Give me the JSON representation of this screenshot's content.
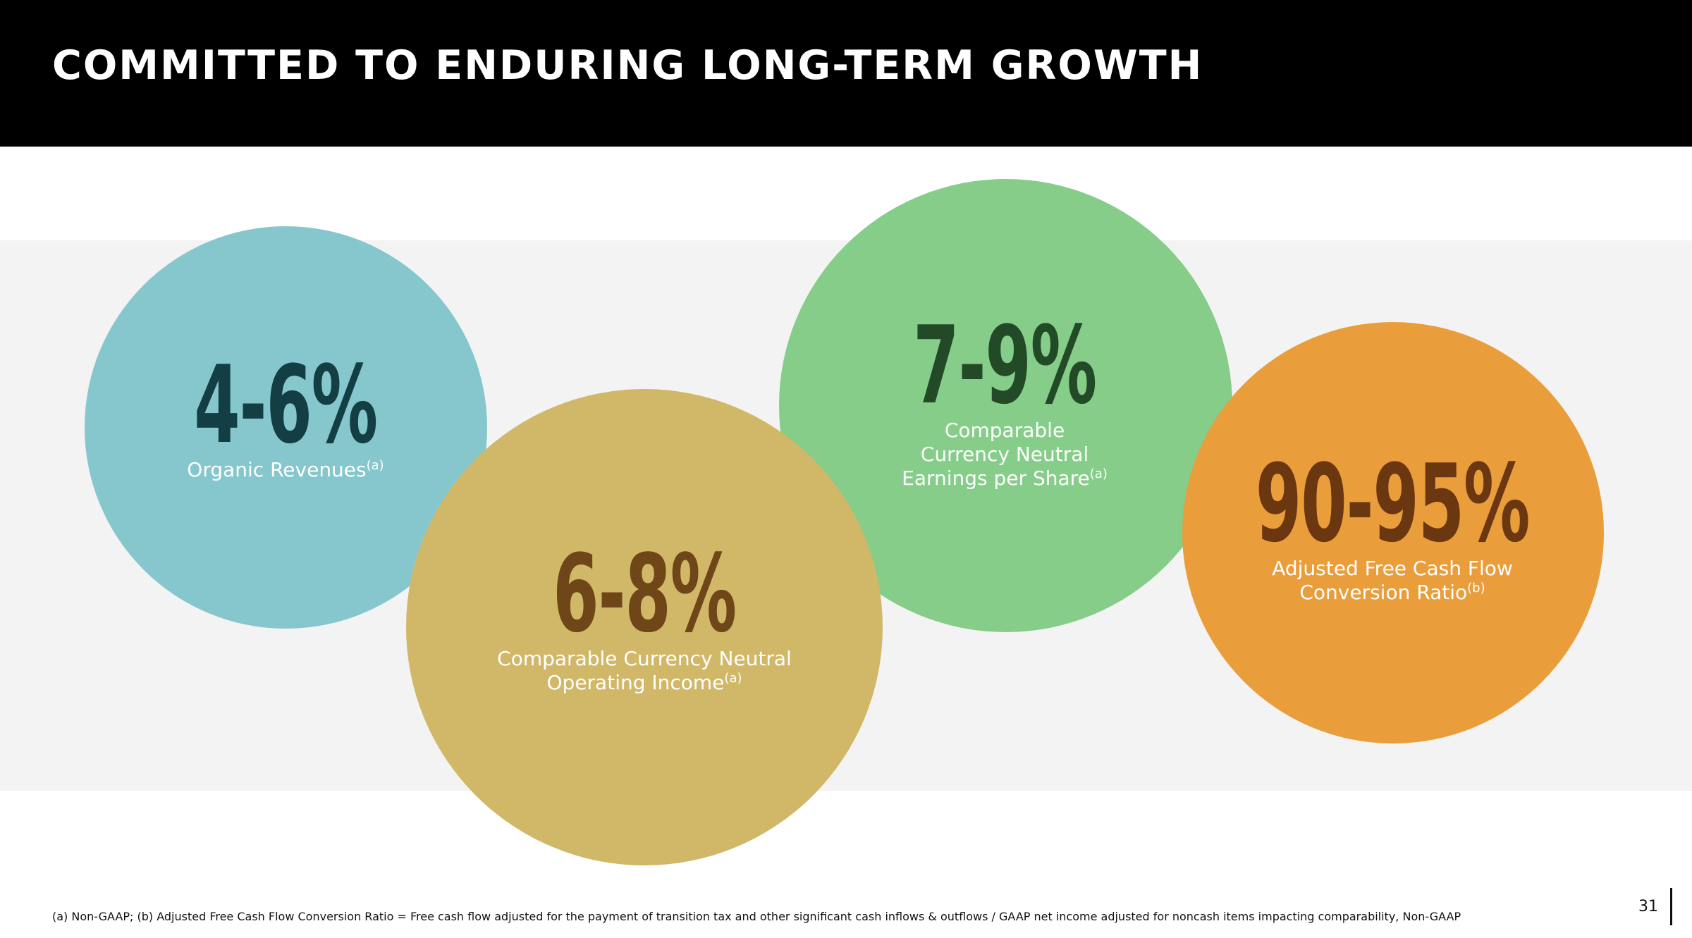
{
  "slide": {
    "title": "COMMITTED TO ENDURING LONG-TERM GROWTH",
    "page_number": "31"
  },
  "metrics": [
    {
      "value": "4-6%",
      "label_lines": [
        "Organic Revenues"
      ],
      "footnote_mark": "(a)",
      "circle_color": "#85c7cd",
      "value_color": "#123e44"
    },
    {
      "value": "6-8%",
      "label_lines": [
        "Comparable Currency Neutral",
        "Operating Income"
      ],
      "footnote_mark": "(a)",
      "circle_color": "#d1b869",
      "value_color": "#6e4617"
    },
    {
      "value": "7-9%",
      "label_lines": [
        "Comparable",
        "Currency Neutral",
        "Earnings per Share"
      ],
      "footnote_mark": "(a)",
      "circle_color": "#85cd89",
      "value_color": "#224a26"
    },
    {
      "value": "90-95%",
      "label_lines": [
        "Adjusted Free Cash Flow",
        "Conversion Ratio"
      ],
      "footnote_mark": "(b)",
      "circle_color": "#e99d3b",
      "value_color": "#6b3710"
    }
  ],
  "footnote": "(a) Non-GAAP; (b) Adjusted Free Cash Flow Conversion Ratio = Free cash flow adjusted for the payment of transition tax and other significant cash inflows & outflows / GAAP net income adjusted for noncash items impacting comparability, Non-GAAP"
}
